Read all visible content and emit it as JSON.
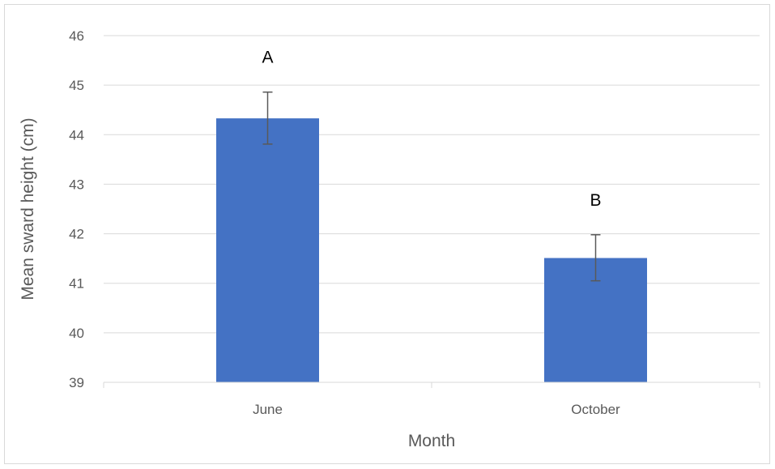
{
  "chart_data": {
    "type": "bar",
    "title": "",
    "xlabel": "Month",
    "ylabel": "Mean sward height (cm)",
    "ylim": [
      39,
      46
    ],
    "yticks": [
      39,
      40,
      41,
      42,
      43,
      44,
      45,
      46
    ],
    "grid": true,
    "categories": [
      "June",
      "October"
    ],
    "values": [
      44.33,
      41.51
    ],
    "error_upper": [
      44.86,
      41.98
    ],
    "error_lower": [
      43.81,
      41.05
    ],
    "significance_labels": [
      "A",
      "B"
    ],
    "bar_color": "#4472c4",
    "gridline_color": "#d9d9d9",
    "errorbar_color": "#595959"
  }
}
